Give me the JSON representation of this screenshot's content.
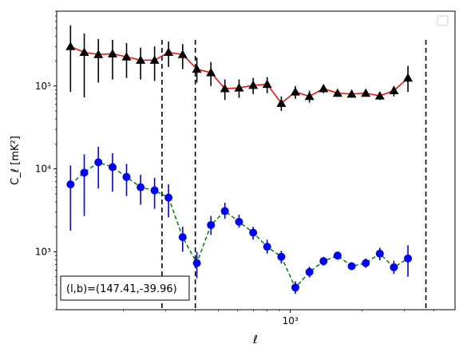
{
  "chart_data": {
    "type": "scatter",
    "title": "",
    "xlabel": "ℓ",
    "ylabel": "C_ℓ [mK²]",
    "xscale": "log",
    "yscale": "log",
    "xlim": [
      105,
      4900
    ],
    "ylim": [
      200,
      800000
    ],
    "x_tick_labels": [
      {
        "value": 1000,
        "label": "10³"
      }
    ],
    "y_tick_labels": [
      {
        "value": 1000,
        "label": "10³"
      },
      {
        "value": 10000,
        "label": "10⁴"
      },
      {
        "value": 100000,
        "label": "10⁵"
      }
    ],
    "annotation": "(l,b)=(147.41,-39.96)",
    "vlines": [
      290,
      400,
      3700
    ],
    "legend_position": "upper right",
    "legend_entries": [],
    "series": [
      {
        "marker": "triangle",
        "marker_color": "#000000",
        "line_color": "#ff0000",
        "line_style": "solid",
        "errorbar_color": "#000000",
        "points": [
          {
            "x": 120,
            "y": 300000,
            "lo": 85000,
            "hi": 540000
          },
          {
            "x": 137,
            "y": 255000,
            "lo": 73000,
            "hi": 430000
          },
          {
            "x": 157,
            "y": 240000,
            "lo": 110000,
            "hi": 370000
          },
          {
            "x": 180,
            "y": 245000,
            "lo": 120000,
            "hi": 360000
          },
          {
            "x": 206,
            "y": 225000,
            "lo": 125000,
            "hi": 330000
          },
          {
            "x": 236,
            "y": 205000,
            "lo": 120000,
            "hi": 290000
          },
          {
            "x": 270,
            "y": 205000,
            "lo": 115000,
            "hi": 300000
          },
          {
            "x": 309,
            "y": 255000,
            "lo": 170000,
            "hi": 345000
          },
          {
            "x": 354,
            "y": 240000,
            "lo": 160000,
            "hi": 320000
          },
          {
            "x": 406,
            "y": 160000,
            "lo": 110000,
            "hi": 220000
          },
          {
            "x": 465,
            "y": 145000,
            "lo": 100000,
            "hi": 195000
          },
          {
            "x": 532,
            "y": 93000,
            "lo": 68000,
            "hi": 120000
          },
          {
            "x": 610,
            "y": 95000,
            "lo": 72000,
            "hi": 120000
          },
          {
            "x": 699,
            "y": 102000,
            "lo": 80000,
            "hi": 125000
          },
          {
            "x": 800,
            "y": 105000,
            "lo": 82000,
            "hi": 128000
          },
          {
            "x": 917,
            "y": 62000,
            "lo": 50000,
            "hi": 75000
          },
          {
            "x": 1050,
            "y": 85000,
            "lo": 70000,
            "hi": 100000
          },
          {
            "x": 1203,
            "y": 75000,
            "lo": 63000,
            "hi": 88000
          },
          {
            "x": 1378,
            "y": 93000,
            "lo": 82000,
            "hi": 104000
          },
          {
            "x": 1578,
            "y": 82000,
            "lo": 74000,
            "hi": 90000
          },
          {
            "x": 1808,
            "y": 80000,
            "lo": 73000,
            "hi": 87000
          },
          {
            "x": 2071,
            "y": 82000,
            "lo": 75000,
            "hi": 89000
          },
          {
            "x": 2372,
            "y": 76000,
            "lo": 68000,
            "hi": 84000
          },
          {
            "x": 2717,
            "y": 88000,
            "lo": 75000,
            "hi": 100000
          },
          {
            "x": 3112,
            "y": 125000,
            "lo": 85000,
            "hi": 175000
          }
        ]
      },
      {
        "marker": "circle",
        "marker_color": "#0000ff",
        "line_color": "#008000",
        "line_style": "dashed",
        "errorbar_color": "#0000ff",
        "points": [
          {
            "x": 120,
            "y": 6500,
            "lo": 1800,
            "hi": 11000
          },
          {
            "x": 137,
            "y": 9000,
            "lo": 2700,
            "hi": 15000
          },
          {
            "x": 157,
            "y": 12000,
            "lo": 5800,
            "hi": 18500
          },
          {
            "x": 180,
            "y": 10500,
            "lo": 5300,
            "hi": 15500
          },
          {
            "x": 206,
            "y": 8000,
            "lo": 4700,
            "hi": 11500
          },
          {
            "x": 236,
            "y": 6000,
            "lo": 3700,
            "hi": 8500
          },
          {
            "x": 270,
            "y": 5500,
            "lo": 3300,
            "hi": 7800
          },
          {
            "x": 309,
            "y": 4500,
            "lo": 2600,
            "hi": 6500
          },
          {
            "x": 354,
            "y": 1500,
            "lo": 1000,
            "hi": 2000
          },
          {
            "x": 406,
            "y": 730,
            "lo": 480,
            "hi": 1000
          },
          {
            "x": 465,
            "y": 2100,
            "lo": 1600,
            "hi": 2700
          },
          {
            "x": 532,
            "y": 3100,
            "lo": 2500,
            "hi": 3900
          },
          {
            "x": 610,
            "y": 2300,
            "lo": 1950,
            "hi": 2800
          },
          {
            "x": 699,
            "y": 1700,
            "lo": 1400,
            "hi": 2000
          },
          {
            "x": 800,
            "y": 1150,
            "lo": 950,
            "hi": 1400
          },
          {
            "x": 917,
            "y": 870,
            "lo": 720,
            "hi": 1030
          },
          {
            "x": 1050,
            "y": 370,
            "lo": 310,
            "hi": 440
          },
          {
            "x": 1203,
            "y": 570,
            "lo": 490,
            "hi": 660
          },
          {
            "x": 1378,
            "y": 770,
            "lo": 680,
            "hi": 870
          },
          {
            "x": 1578,
            "y": 900,
            "lo": 810,
            "hi": 990
          },
          {
            "x": 1808,
            "y": 670,
            "lo": 610,
            "hi": 740
          },
          {
            "x": 2071,
            "y": 730,
            "lo": 640,
            "hi": 830
          },
          {
            "x": 2372,
            "y": 950,
            "lo": 790,
            "hi": 1120
          },
          {
            "x": 2717,
            "y": 650,
            "lo": 540,
            "hi": 780
          },
          {
            "x": 3112,
            "y": 830,
            "lo": 500,
            "hi": 1200
          }
        ]
      }
    ]
  }
}
